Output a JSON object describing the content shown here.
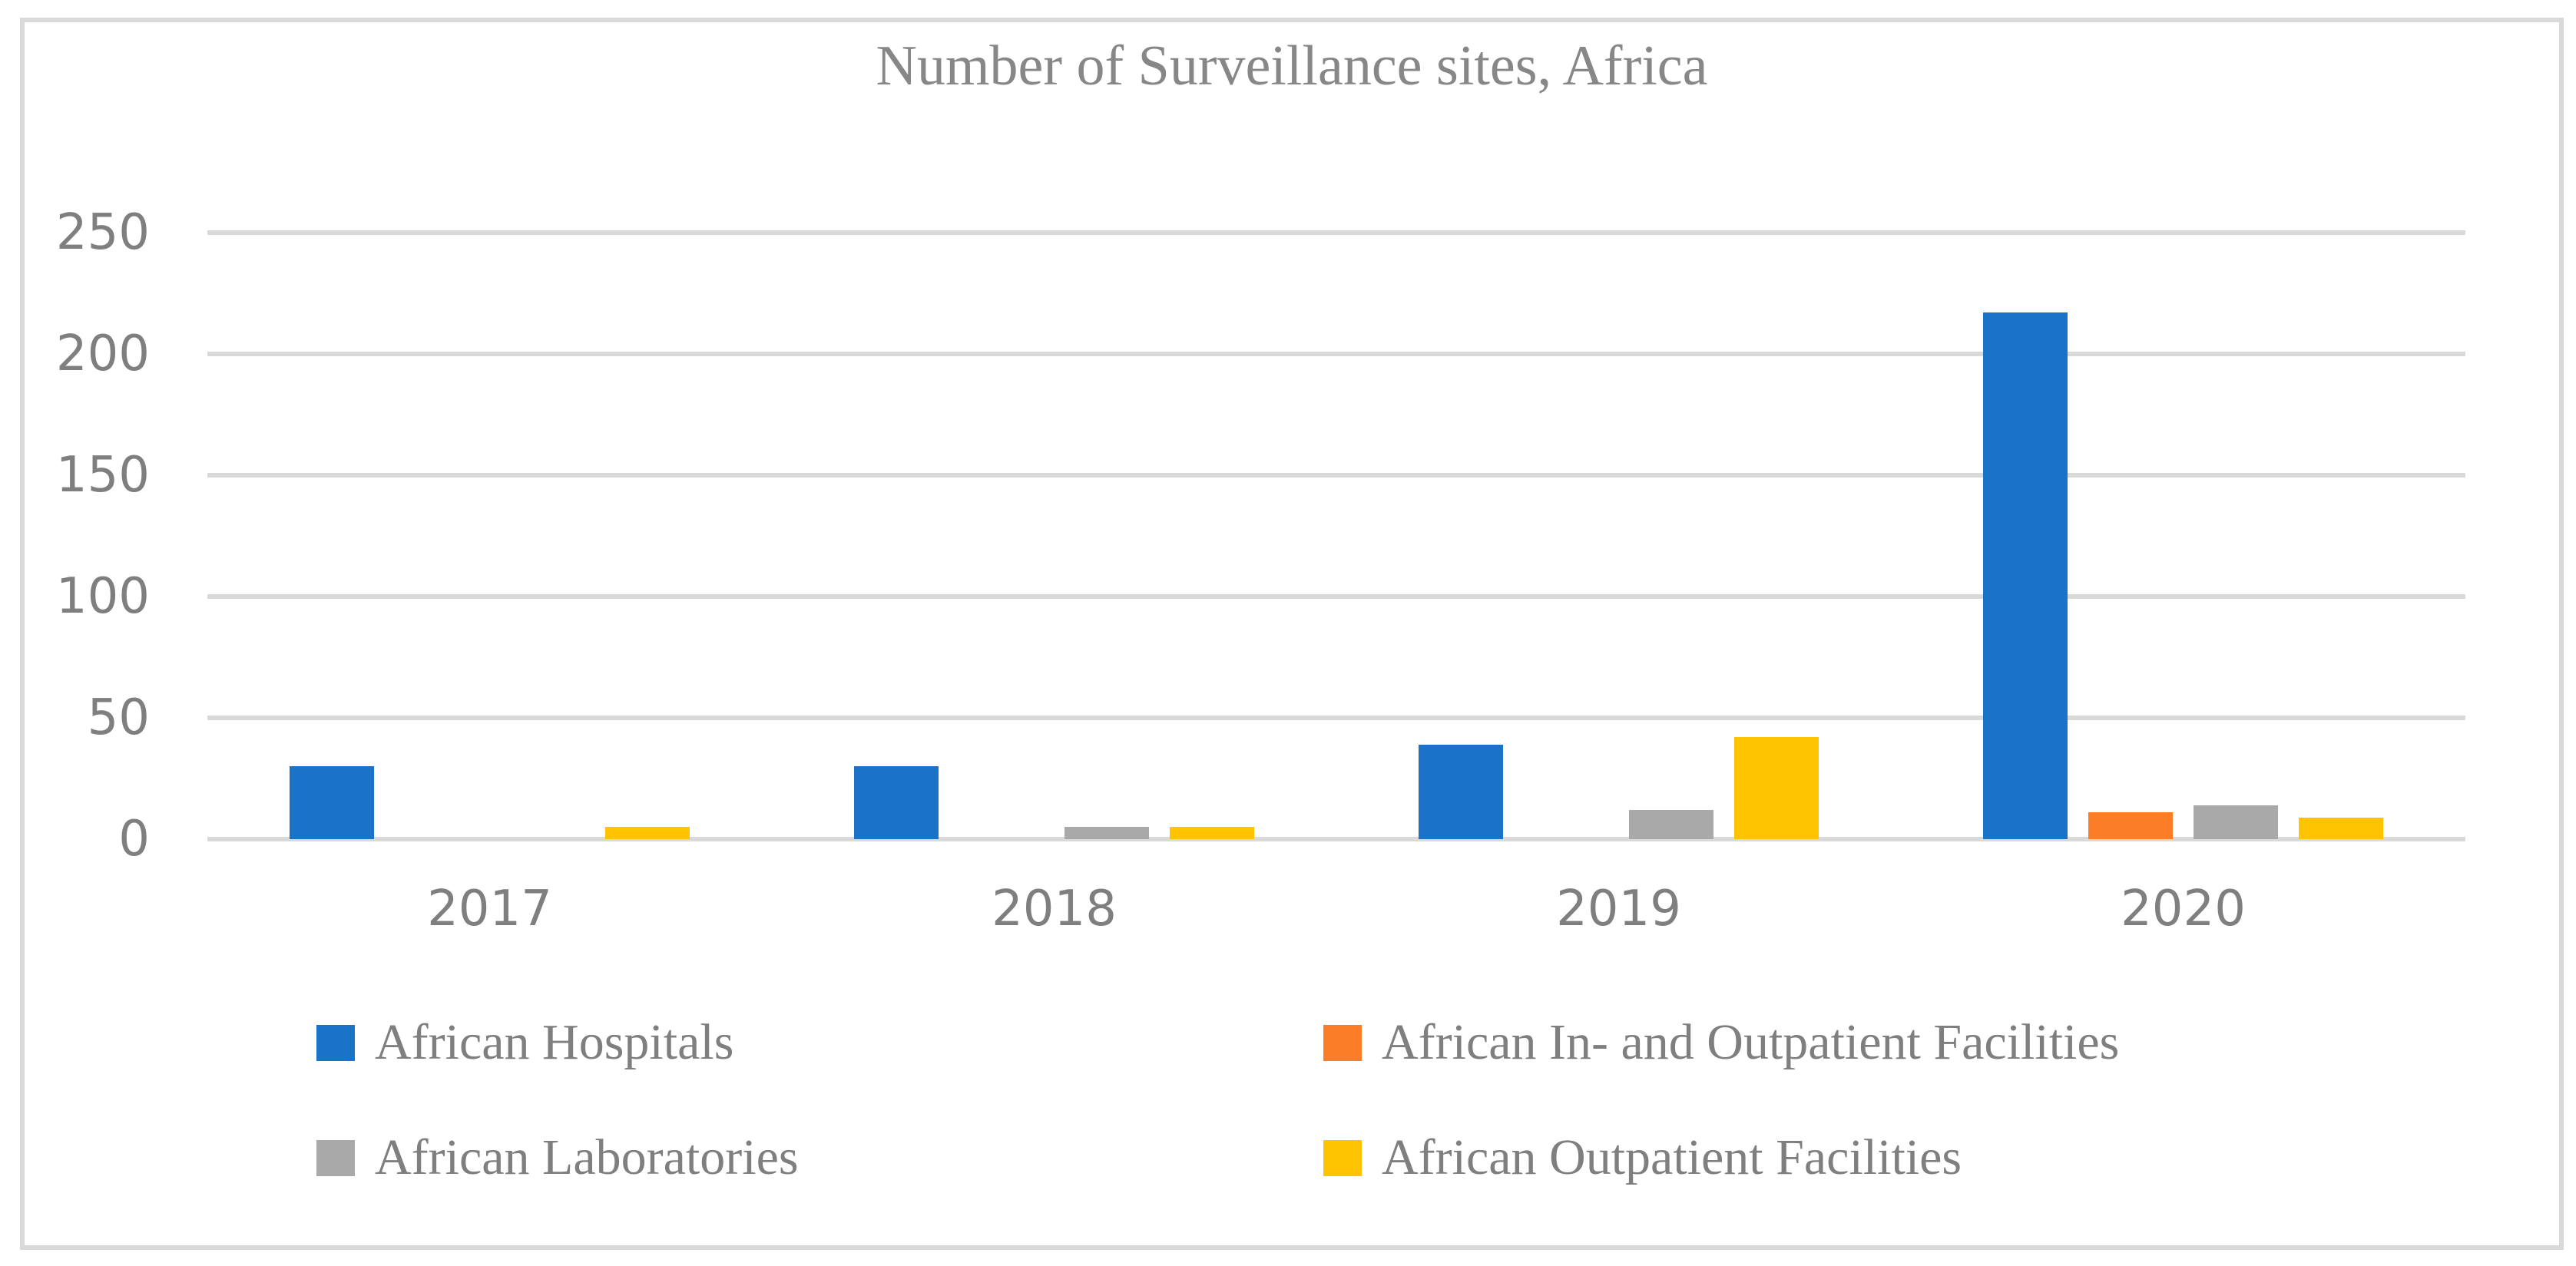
{
  "chart_data": {
    "type": "bar",
    "title": "Number of Surveillance sites, Africa",
    "categories": [
      "2017",
      "2018",
      "2019",
      "2020"
    ],
    "series": [
      {
        "name": "African Hospitals",
        "color": "#1A73C6",
        "values": [
          30,
          30,
          39,
          217
        ]
      },
      {
        "name": "African In- and Outpatient Facilities",
        "color": "#FC7D27",
        "values": [
          0,
          0,
          0,
          11
        ]
      },
      {
        "name": "African Laboratories",
        "color": "#A9A9A9",
        "values": [
          0,
          5,
          12,
          14
        ]
      },
      {
        "name": "African Outpatient Facilities",
        "color": "#FEC402",
        "values": [
          5,
          5,
          42,
          9
        ]
      }
    ],
    "xlabel": "",
    "ylabel": "",
    "ylim": [
      0,
      250
    ],
    "y_ticks": [
      0,
      50,
      100,
      150,
      200,
      250
    ],
    "grid": true,
    "legend_position": "bottom",
    "colors": {
      "gridline": "#D9D9D9",
      "frame": "#D9D9D9",
      "text": "#7F7F7F",
      "title_text": "#878787",
      "background": "#FFFFFF"
    }
  }
}
